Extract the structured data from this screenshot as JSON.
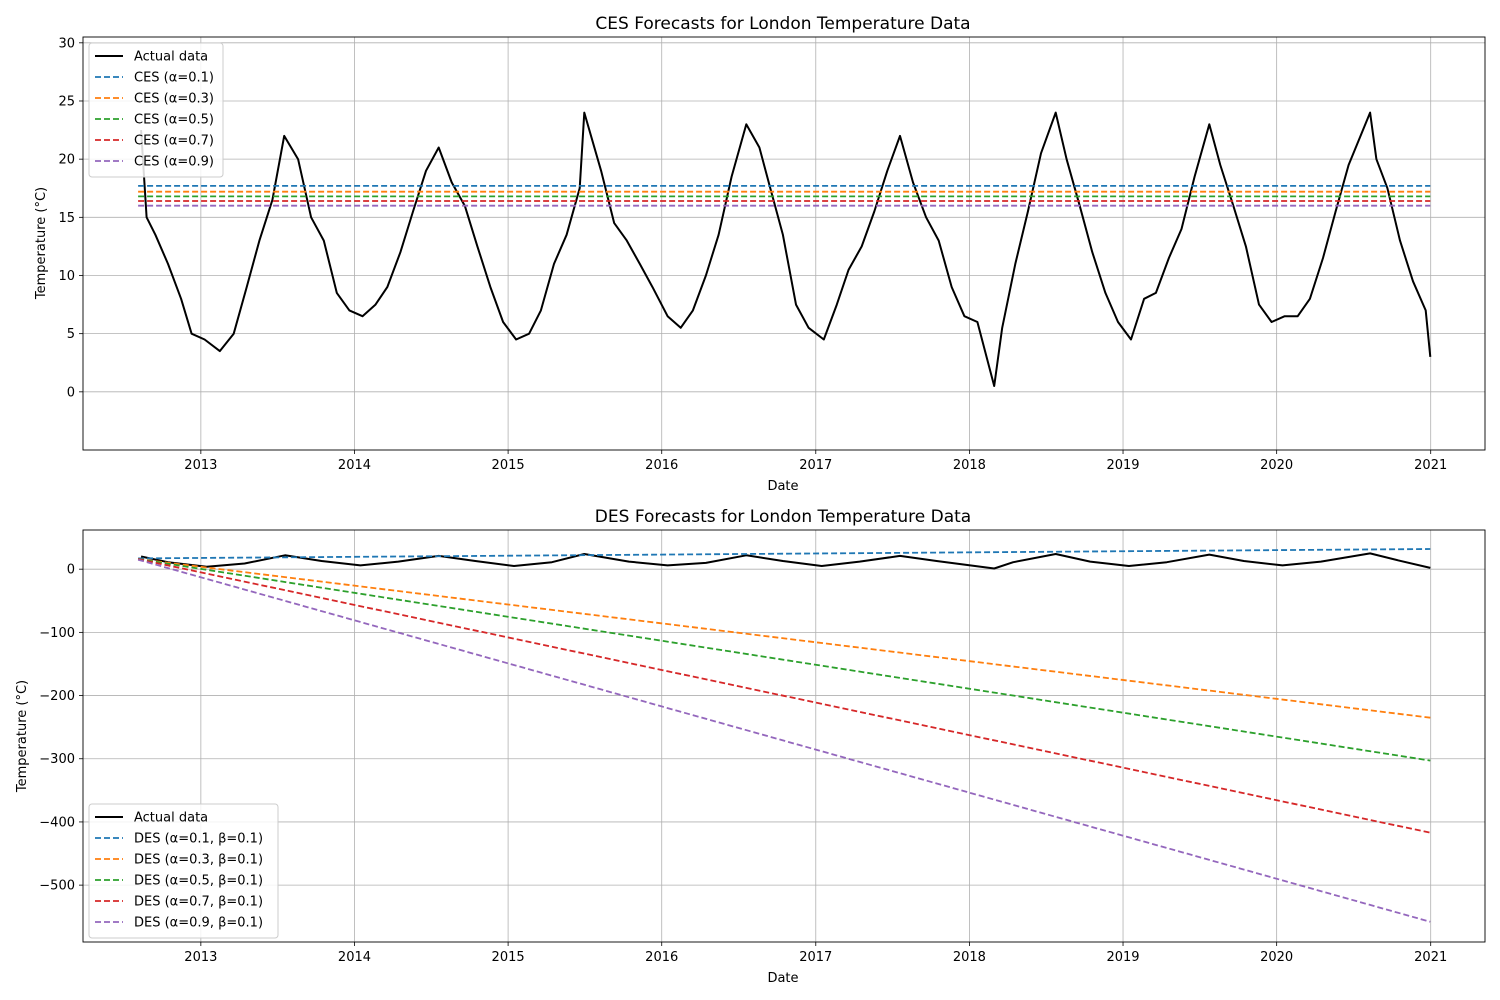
{
  "chart_data": [
    {
      "type": "line",
      "title": "CES Forecasts for London Temperature Data",
      "xlabel": "Date",
      "ylabel": "Temperature (°C)",
      "xlim": [
        "2012-03-27",
        "2021-05-10"
      ],
      "ylim": [
        -5,
        30.5
      ],
      "xticks": [
        "2013",
        "2014",
        "2015",
        "2016",
        "2017",
        "2018",
        "2019",
        "2020",
        "2021"
      ],
      "yticks": [
        "0",
        "5",
        "10",
        "15",
        "20",
        "25",
        "30"
      ],
      "grid": true,
      "legend_position": "top-left",
      "actual": {
        "name": "Actual data",
        "color": "#000000",
        "x": [
          "2012-08-12",
          "2012-08-25",
          "2012-09-15",
          "2012-10-15",
          "2012-11-15",
          "2012-12-10",
          "2013-01-10",
          "2013-02-15",
          "2013-03-20",
          "2013-04-20",
          "2013-05-20",
          "2013-06-20",
          "2013-07-18",
          "2013-08-20",
          "2013-09-20",
          "2013-10-20",
          "2013-11-20",
          "2013-12-20",
          "2014-01-20",
          "2014-02-20",
          "2014-03-20",
          "2014-04-20",
          "2014-05-20",
          "2014-06-20",
          "2014-07-20",
          "2014-08-20",
          "2014-09-20",
          "2014-10-20",
          "2014-11-20",
          "2014-12-20",
          "2015-01-20",
          "2015-02-20",
          "2015-03-20",
          "2015-04-20",
          "2015-05-20",
          "2015-06-20",
          "2015-07-01",
          "2015-08-10",
          "2015-09-10",
          "2015-10-10",
          "2015-11-10",
          "2015-12-10",
          "2016-01-15",
          "2016-02-15",
          "2016-03-15",
          "2016-04-15",
          "2016-05-15",
          "2016-06-15",
          "2016-07-20",
          "2016-08-20",
          "2016-09-15",
          "2016-10-15",
          "2016-11-15",
          "2016-12-15",
          "2017-01-20",
          "2017-02-20",
          "2017-03-20",
          "2017-04-20",
          "2017-05-20",
          "2017-06-20",
          "2017-07-20",
          "2017-08-20",
          "2017-09-20",
          "2017-10-20",
          "2017-11-20",
          "2017-12-20",
          "2018-01-20",
          "2018-03-01",
          "2018-03-20",
          "2018-04-20",
          "2018-05-20",
          "2018-06-20",
          "2018-07-25",
          "2018-08-20",
          "2018-09-20",
          "2018-10-20",
          "2018-11-20",
          "2018-12-20",
          "2019-01-20",
          "2019-02-20",
          "2019-03-20",
          "2019-04-20",
          "2019-05-20",
          "2019-06-20",
          "2019-07-25",
          "2019-08-20",
          "2019-09-20",
          "2019-10-20",
          "2019-11-20",
          "2019-12-20",
          "2020-01-20",
          "2020-02-20",
          "2020-03-20",
          "2020-04-20",
          "2020-05-20",
          "2020-06-20",
          "2020-08-10",
          "2020-08-25",
          "2020-09-20",
          "2020-10-20",
          "2020-11-20",
          "2020-12-20",
          "2020-12-31"
        ],
        "y": [
          22.5,
          15.0,
          13.5,
          11.0,
          8.0,
          5.0,
          4.5,
          3.5,
          5.0,
          9.0,
          13.0,
          16.5,
          22.0,
          20.0,
          15.0,
          13.0,
          8.5,
          7.0,
          6.5,
          7.5,
          9.0,
          12.0,
          15.5,
          19.0,
          21.0,
          18.0,
          16.0,
          12.5,
          9.0,
          6.0,
          4.5,
          5.0,
          7.0,
          11.0,
          13.5,
          17.5,
          24.0,
          19.0,
          14.5,
          13.0,
          11.0,
          9.0,
          6.5,
          5.5,
          7.0,
          10.0,
          13.5,
          18.5,
          23.0,
          21.0,
          17.5,
          13.5,
          7.5,
          5.5,
          4.5,
          7.5,
          10.5,
          12.5,
          15.5,
          19.0,
          22.0,
          18.0,
          15.0,
          13.0,
          9.0,
          6.5,
          6.0,
          0.5,
          5.5,
          11.0,
          15.5,
          20.5,
          24.0,
          20.0,
          16.0,
          12.0,
          8.5,
          6.0,
          4.5,
          8.0,
          8.5,
          11.5,
          14.0,
          18.5,
          23.0,
          19.5,
          16.0,
          12.5,
          7.5,
          6.0,
          6.5,
          6.5,
          8.0,
          11.5,
          15.5,
          19.5,
          24.0,
          20.0,
          17.5,
          13.0,
          9.5,
          7.0,
          3.0
        ]
      },
      "series": [
        {
          "name": "CES (α=0.1)",
          "color": "#1f77b4",
          "x": [
            "2012-08-05",
            "2020-12-31"
          ],
          "y": [
            17.7,
            17.7
          ]
        },
        {
          "name": "CES (α=0.3)",
          "color": "#ff7f0e",
          "x": [
            "2012-08-05",
            "2020-12-31"
          ],
          "y": [
            17.2,
            17.2
          ]
        },
        {
          "name": "CES (α=0.5)",
          "color": "#2ca02c",
          "x": [
            "2012-08-05",
            "2020-12-31"
          ],
          "y": [
            16.8,
            16.8
          ]
        },
        {
          "name": "CES (α=0.7)",
          "color": "#d62728",
          "x": [
            "2012-08-05",
            "2020-12-31"
          ],
          "y": [
            16.4,
            16.4
          ]
        },
        {
          "name": "CES (α=0.9)",
          "color": "#9467bd",
          "x": [
            "2012-08-05",
            "2020-12-31"
          ],
          "y": [
            16.0,
            16.0
          ]
        }
      ]
    },
    {
      "type": "line",
      "title": "DES Forecasts for London Temperature Data",
      "xlabel": "Date",
      "ylabel": "Temperature (°C)",
      "xlim": [
        "2012-03-27",
        "2021-05-10"
      ],
      "ylim": [
        -590,
        62
      ],
      "xticks": [
        "2013",
        "2014",
        "2015",
        "2016",
        "2017",
        "2018",
        "2019",
        "2020",
        "2021"
      ],
      "yticks": [
        "−500",
        "−400",
        "−300",
        "−200",
        "−100",
        "0"
      ],
      "grid": true,
      "legend_position": "bottom-left",
      "actual": {
        "name": "Actual data",
        "color": "#000000",
        "x": [
          "2012-08-12",
          "2012-10-15",
          "2013-01-15",
          "2013-04-15",
          "2013-07-20",
          "2013-10-15",
          "2014-01-15",
          "2014-04-15",
          "2014-07-20",
          "2014-10-15",
          "2015-01-15",
          "2015-04-15",
          "2015-07-01",
          "2015-10-15",
          "2016-01-15",
          "2016-04-15",
          "2016-07-20",
          "2016-10-15",
          "2017-01-15",
          "2017-04-15",
          "2017-07-20",
          "2017-10-15",
          "2018-03-01",
          "2018-04-15",
          "2018-07-25",
          "2018-10-15",
          "2019-01-15",
          "2019-04-15",
          "2019-07-25",
          "2019-10-15",
          "2020-01-15",
          "2020-04-15",
          "2020-08-10",
          "2020-10-15",
          "2020-12-31"
        ],
        "y": [
          20,
          11,
          4,
          9,
          22,
          13,
          6,
          12,
          21,
          13,
          5,
          11,
          24,
          12,
          6,
          10,
          22,
          13,
          5,
          12,
          21,
          13,
          1,
          11,
          24,
          12,
          5,
          11,
          23,
          13,
          6,
          12,
          25,
          14,
          2
        ]
      },
      "series": [
        {
          "name": "DES (α=0.1, β=0.1)",
          "color": "#1f77b4",
          "x": [
            "2012-08-05",
            "2020-12-31"
          ],
          "y": [
            17,
            32
          ]
        },
        {
          "name": "DES (α=0.3, β=0.1)",
          "color": "#ff7f0e",
          "x": [
            "2012-08-05",
            "2020-12-31"
          ],
          "y": [
            16,
            -235
          ]
        },
        {
          "name": "DES (α=0.5, β=0.1)",
          "color": "#2ca02c",
          "x": [
            "2012-08-05",
            "2020-12-31"
          ],
          "y": [
            16,
            -303
          ]
        },
        {
          "name": "DES (α=0.7, β=0.1)",
          "color": "#d62728",
          "x": [
            "2012-08-05",
            "2020-12-31"
          ],
          "y": [
            16,
            -417
          ]
        },
        {
          "name": "DES (α=0.9, β=0.1)",
          "color": "#9467bd",
          "x": [
            "2012-08-05",
            "2020-12-31"
          ],
          "y": [
            15,
            -558
          ]
        }
      ]
    }
  ]
}
